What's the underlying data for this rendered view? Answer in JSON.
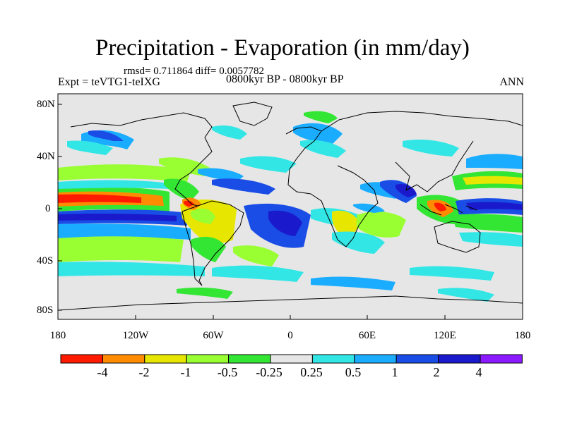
{
  "header": {
    "title": "Precipitation - Evaporation (in mm/day)",
    "stats": "rmsd= 0.711864 diff= 0.0057782",
    "experiment": "Expt = teVTG1-teIXG",
    "period": "0800kyr BP - 0800kyr BP",
    "season": "ANN"
  },
  "map": {
    "lat_ticks": [
      "80N",
      "40N",
      "0",
      "40S",
      "80S"
    ],
    "lon_ticks": [
      "180",
      "120W",
      "60W",
      "0",
      "60E",
      "120E",
      "180"
    ],
    "ocean_color": "#e6e6e6",
    "coastline_color": "#000000"
  },
  "colorbar": {
    "labels": [
      "-4",
      "-2",
      "-1",
      "-0.5",
      "-0.25",
      "0.25",
      "0.5",
      "1",
      "2",
      "4"
    ],
    "colors": [
      "#ff1a00",
      "#ff8c00",
      "#e6e600",
      "#99ff33",
      "#33e633",
      "#e6e6e6",
      "#33e6e6",
      "#1aadff",
      "#1a4de6",
      "#1a1acc",
      "#8c1aff"
    ]
  }
}
